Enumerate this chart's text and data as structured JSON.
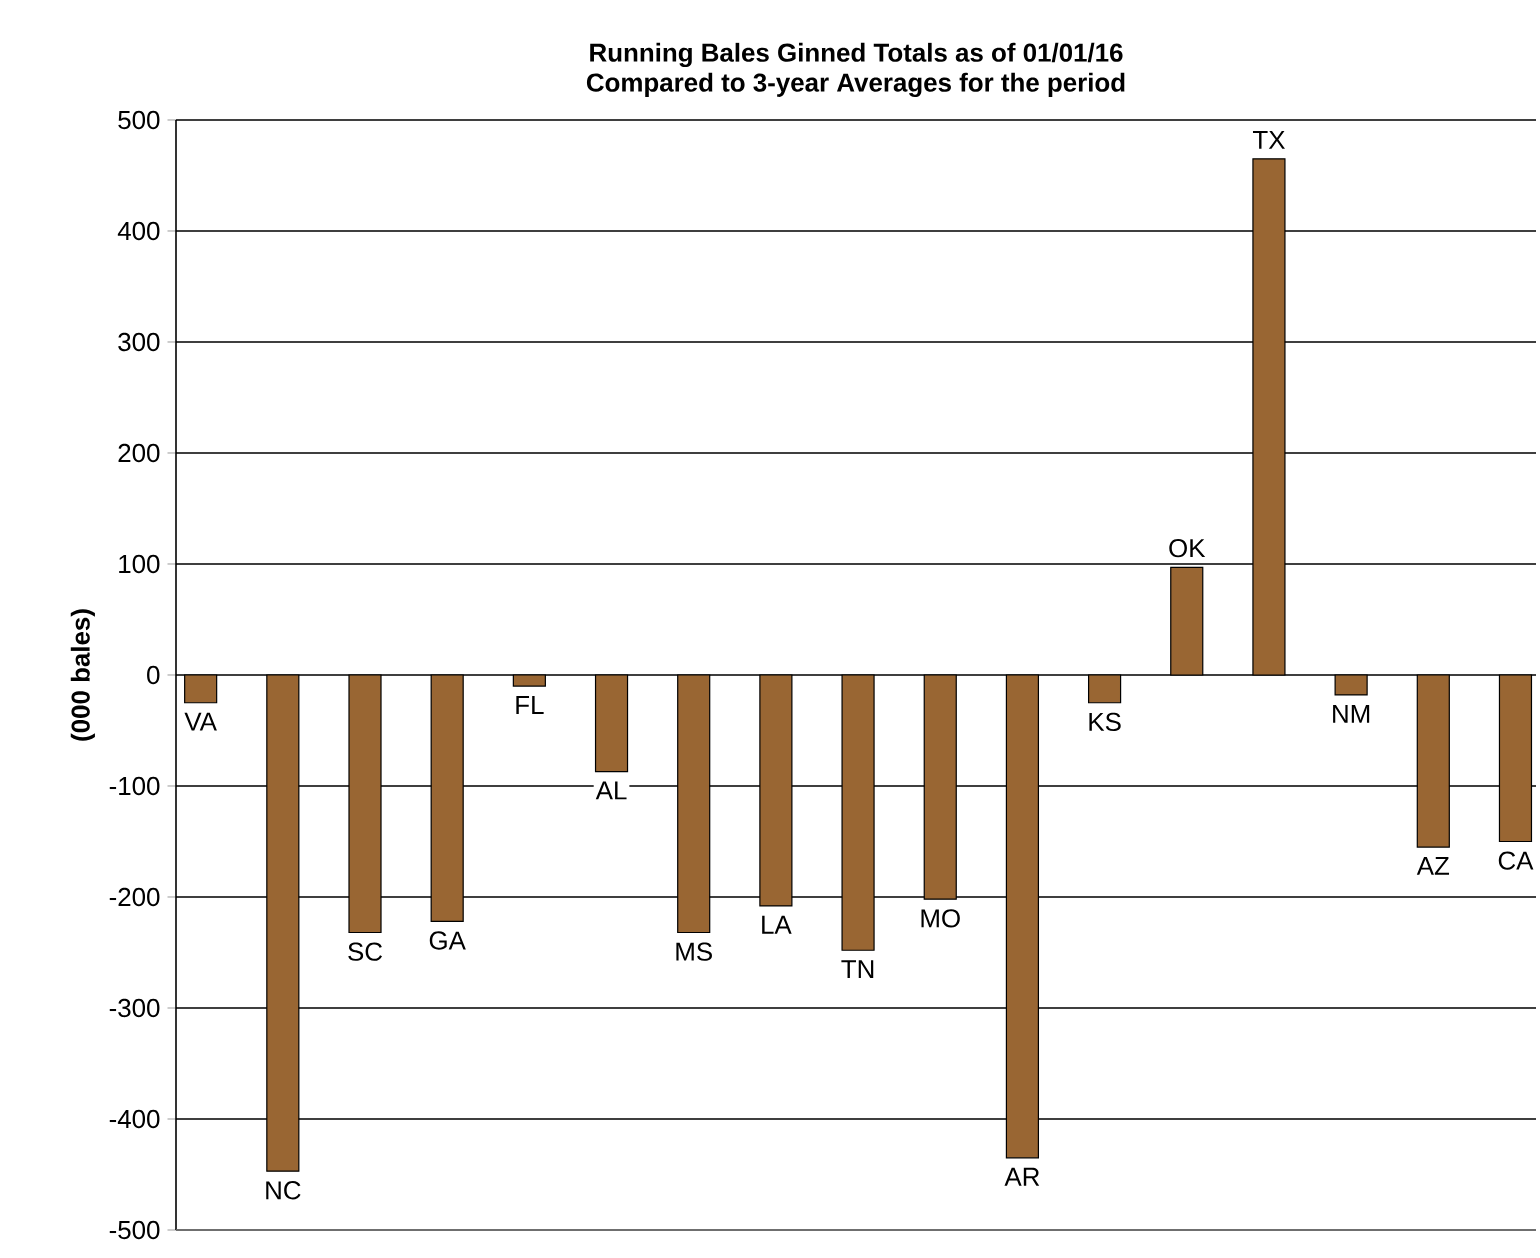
{
  "chart_data": {
    "type": "bar",
    "title": "Running Bales Ginned Totals as of 01/01/16",
    "subtitle": "Compared to 3-year Averages for the period",
    "ylabel": "(000 bales)",
    "categories": [
      "VA",
      "NC",
      "SC",
      "GA",
      "FL",
      "AL",
      "MS",
      "LA",
      "TN",
      "MO",
      "AR",
      "KS",
      "OK",
      "TX",
      "NM",
      "AZ",
      "CA"
    ],
    "values": [
      -25,
      -447,
      -232,
      -222,
      -10,
      -87,
      -232,
      -208,
      -248,
      -202,
      -435,
      -25,
      97,
      465,
      -18,
      -155,
      -150
    ],
    "color": "#996633",
    "ylim": [
      -500,
      500
    ],
    "yticks": [
      -500,
      -400,
      -300,
      -200,
      -100,
      0,
      100,
      200,
      300,
      400,
      500
    ],
    "grid": "y"
  }
}
